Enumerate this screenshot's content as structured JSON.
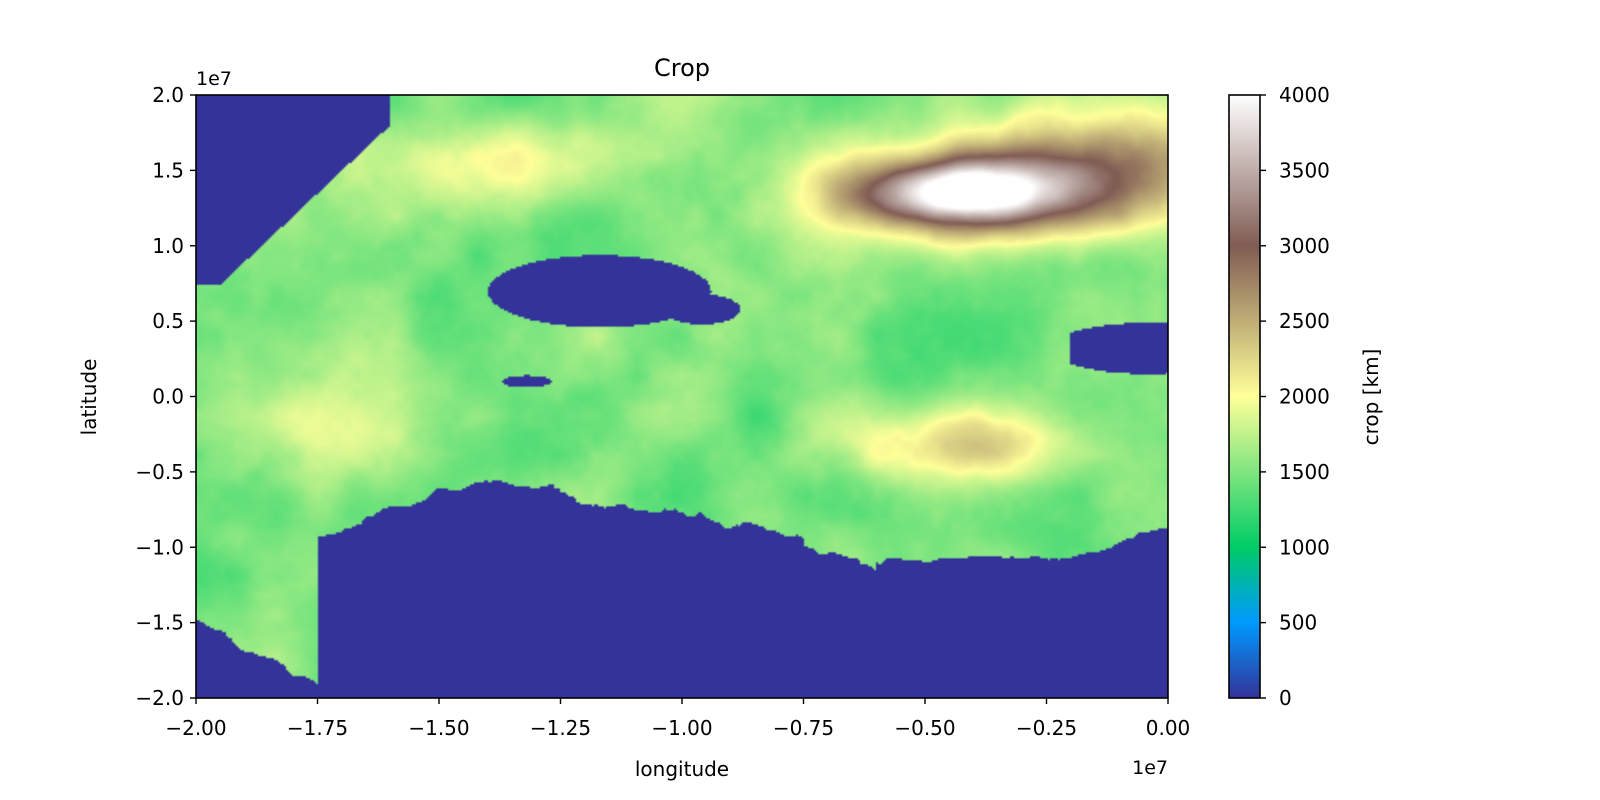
{
  "chart_data": {
    "type": "heatmap",
    "title": "Crop",
    "xlabel": "longitude",
    "ylabel": "latitude",
    "x_offset_label": "1e7",
    "y_offset_label": "1e7",
    "xlim": [
      -2.0,
      0.0
    ],
    "ylim": [
      -2.0,
      2.0
    ],
    "x_ticks": [
      -2.0,
      -1.75,
      -1.5,
      -1.25,
      -1.0,
      -0.75,
      -0.5,
      -0.25,
      0.0
    ],
    "x_tick_labels": [
      "−2.00",
      "−1.75",
      "−1.50",
      "−1.25",
      "−1.00",
      "−0.75",
      "−0.50",
      "−0.25",
      "0.00"
    ],
    "y_ticks": [
      2.0,
      1.5,
      1.0,
      0.5,
      0.0,
      -0.5,
      -1.0,
      -1.5,
      -2.0
    ],
    "y_tick_labels": [
      "2.0",
      "1.5",
      "1.0",
      "0.5",
      "0.0",
      "−0.5",
      "−1.0",
      "−1.5",
      "−2.0"
    ],
    "colormap": "terrain",
    "colorbar": {
      "label": "crop [km]",
      "range": [
        0,
        4000
      ],
      "ticks": [
        4000,
        3500,
        3000,
        2500,
        2000,
        1500,
        1000,
        500,
        0
      ],
      "tick_labels": [
        "4000",
        "3500",
        "3000",
        "2500",
        "2000",
        "1500",
        "1000",
        "500",
        "0"
      ]
    },
    "grid": false,
    "features": [
      {
        "kind": "water",
        "value": 0,
        "description_region": "south band"
      },
      {
        "kind": "water",
        "value": 0,
        "description_region": "north-west corner"
      },
      {
        "kind": "water",
        "value": 0,
        "description_region": "central lake"
      },
      {
        "kind": "water",
        "value": 0,
        "description_region": "small lake"
      },
      {
        "kind": "water",
        "value": 0,
        "description_region": "east inlet"
      },
      {
        "kind": "peak",
        "lon": -0.45,
        "lat": 1.35,
        "max_value": 4000
      },
      {
        "kind": "hill",
        "lon": -0.4,
        "lat": -0.33,
        "max_value": 2800
      },
      {
        "kind": "highland",
        "lon": -1.7,
        "lat": -0.2,
        "max_value": 2000
      }
    ]
  }
}
